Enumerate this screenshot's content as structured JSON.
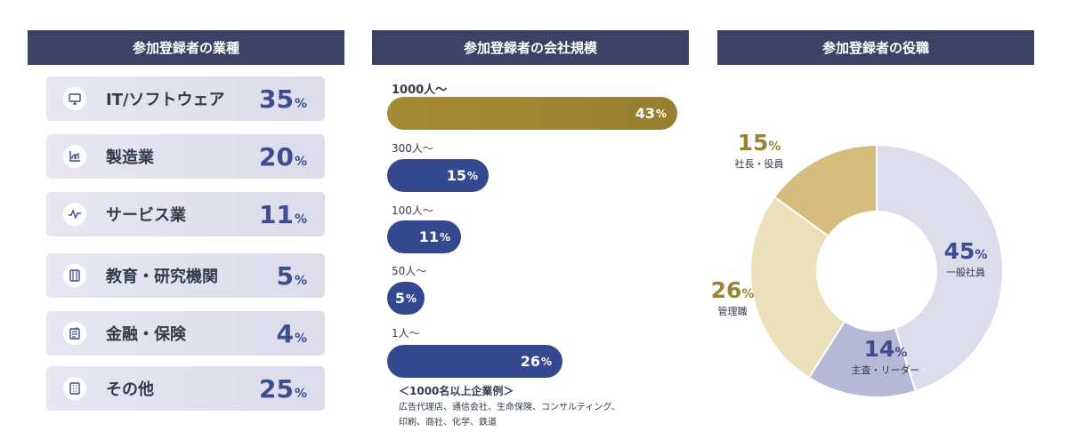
{
  "headers": {
    "industry": "参加登録者の業種",
    "size": "参加登録者の会社規模",
    "role": "参加登録者の役職"
  },
  "percent_sign": "%",
  "industries": [
    {
      "label": "IT/ソフトウェア",
      "value": "35",
      "icon": "monitor-icon"
    },
    {
      "label": "製造業",
      "value": "20",
      "icon": "factory-chart-icon"
    },
    {
      "label": "サービス業",
      "value": "11",
      "icon": "pulse-icon"
    },
    {
      "label": "教育・研究機関",
      "value": "5",
      "icon": "book-icon"
    },
    {
      "label": "金融・保険",
      "value": "4",
      "icon": "finance-doc-icon"
    },
    {
      "label": "その他",
      "value": "25",
      "icon": "building-icon"
    }
  ],
  "company_sizes": [
    {
      "label": "1000人～",
      "value": "43"
    },
    {
      "label": "300人～",
      "value": "15"
    },
    {
      "label": "100人～",
      "value": "11"
    },
    {
      "label": "50人～",
      "value": "5"
    },
    {
      "label": "1人～",
      "value": "26"
    }
  ],
  "note": {
    "title": "＜1000名以上企業例＞",
    "line1": "広告代理店、通信会社、生命保険、コンサルティング、",
    "line2": "印刷、商社、化学、鉄道"
  },
  "roles": [
    {
      "label": "一般社員",
      "value": "45"
    },
    {
      "label": "主査・リーダー",
      "value": "14"
    },
    {
      "label": "管理職",
      "value": "26"
    },
    {
      "label": "社長・役員",
      "value": "15"
    }
  ],
  "colors": {
    "header_bg": "#3b4264",
    "accent_blue": "#3d4d8f",
    "accent_gold": "#9a8335",
    "donut_general": "#dcdcea",
    "donut_leader": "#b6b8d6",
    "donut_manager": "#ece0ba",
    "donut_exec": "#d4bd7e"
  },
  "chart_data": [
    {
      "type": "table",
      "title": "参加登録者の業種",
      "categories": [
        "IT/ソフトウェア",
        "製造業",
        "サービス業",
        "教育・研究機関",
        "金融・保険",
        "その他"
      ],
      "values": [
        35,
        20,
        11,
        5,
        4,
        25
      ],
      "unit": "%"
    },
    {
      "type": "bar",
      "title": "参加登録者の会社規模",
      "categories": [
        "1000人～",
        "300人～",
        "100人～",
        "50人～",
        "1人～"
      ],
      "values": [
        43,
        15,
        11,
        5,
        26
      ],
      "unit": "%",
      "orientation": "horizontal",
      "xlim": [
        0,
        43
      ]
    },
    {
      "type": "pie",
      "title": "参加登録者の役職",
      "donut": true,
      "categories": [
        "一般社員",
        "主査・リーダー",
        "管理職",
        "社長・役員"
      ],
      "values": [
        45,
        14,
        26,
        15
      ],
      "unit": "%"
    }
  ]
}
